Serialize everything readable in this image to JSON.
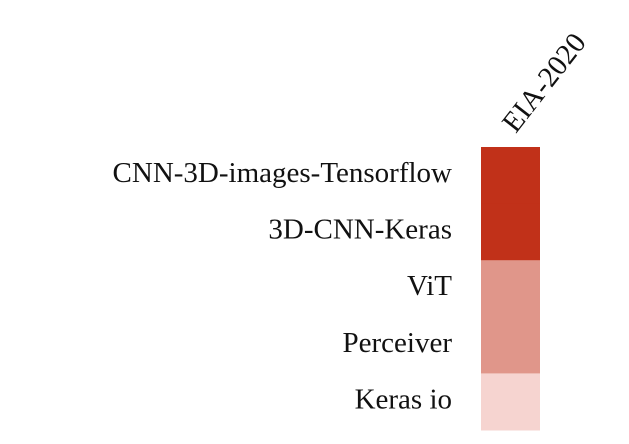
{
  "chart_data": {
    "type": "heatmap",
    "rows": [
      "CNN-3D-images-Tensorflow",
      "3D-CNN-Keras",
      "ViT",
      "Perceiver",
      "Keras io"
    ],
    "columns": [
      "EIA-2020"
    ],
    "colors": [
      [
        "#c13119"
      ],
      [
        "#c13119"
      ],
      [
        "#e0968a"
      ],
      [
        "#e0968a"
      ],
      [
        "#f6d4d0"
      ]
    ]
  }
}
